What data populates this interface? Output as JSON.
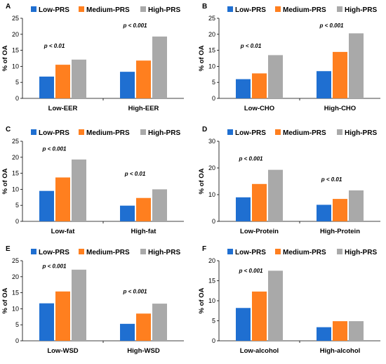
{
  "legend": [
    "Low-PRS",
    "Medium-PRS",
    "High-PRS"
  ],
  "colors": [
    "#1F6FD1",
    "#FF7F1F",
    "#A9A9A9"
  ],
  "chart_data": [
    {
      "type": "bar",
      "panel": "A",
      "title": "",
      "xlabel": "",
      "ylabel": "% of OA",
      "ylim": [
        0,
        25
      ],
      "yticks": [
        0,
        5,
        10,
        15,
        20,
        25
      ],
      "categories": [
        "Low-EER",
        "High-EER"
      ],
      "series": [
        {
          "name": "Low-PRS",
          "values": [
            6.8,
            8.3
          ]
        },
        {
          "name": "Medium-PRS",
          "values": [
            10.5,
            11.8
          ]
        },
        {
          "name": "High-PRS",
          "values": [
            12.1,
            19.3
          ]
        }
      ],
      "annotations": [
        {
          "text": "p < 0.01",
          "category": 0,
          "value": 15.8
        },
        {
          "text": "p < 0.001",
          "category": 1,
          "value": 22.2
        }
      ],
      "legend_position": "top"
    },
    {
      "type": "bar",
      "panel": "B",
      "title": "",
      "xlabel": "",
      "ylabel": "% of OA",
      "ylim": [
        0,
        25
      ],
      "yticks": [
        0,
        5,
        10,
        15,
        20,
        25
      ],
      "categories": [
        "Low-CHO",
        "High-CHO"
      ],
      "series": [
        {
          "name": "Low-PRS",
          "values": [
            6.0,
            8.5
          ]
        },
        {
          "name": "Medium-PRS",
          "values": [
            7.8,
            14.5
          ]
        },
        {
          "name": "High-PRS",
          "values": [
            13.5,
            20.3
          ]
        }
      ],
      "annotations": [
        {
          "text": "p < 0.01",
          "category": 0,
          "value": 15.8
        },
        {
          "text": "p < 0.001",
          "category": 1,
          "value": 22.2
        }
      ],
      "legend_position": "top"
    },
    {
      "type": "bar",
      "panel": "C",
      "title": "",
      "xlabel": "",
      "ylabel": "% of OA",
      "ylim": [
        0,
        25
      ],
      "yticks": [
        0,
        5,
        10,
        15,
        20,
        25
      ],
      "categories": [
        "Low-fat",
        "High-fat"
      ],
      "series": [
        {
          "name": "Low-PRS",
          "values": [
            9.5,
            4.9
          ]
        },
        {
          "name": "Medium-PRS",
          "values": [
            13.7,
            7.3
          ]
        },
        {
          "name": "High-PRS",
          "values": [
            19.3,
            10.0
          ]
        }
      ],
      "annotations": [
        {
          "text": "p < 0.001",
          "category": 0,
          "value": 22.0
        },
        {
          "text": "p < 0.01",
          "category": 1,
          "value": 14.3
        }
      ],
      "legend_position": "top"
    },
    {
      "type": "bar",
      "panel": "D",
      "title": "",
      "xlabel": "",
      "ylabel": "% of OA",
      "ylim": [
        0,
        30
      ],
      "yticks": [
        0,
        10,
        20,
        30
      ],
      "categories": [
        "Low-Protein",
        "High-Protein"
      ],
      "series": [
        {
          "name": "Low-PRS",
          "values": [
            9.0,
            6.2
          ]
        },
        {
          "name": "Medium-PRS",
          "values": [
            14.0,
            8.4
          ]
        },
        {
          "name": "High-PRS",
          "values": [
            19.3,
            11.6
          ]
        }
      ],
      "annotations": [
        {
          "text": "p < 0.001",
          "category": 0,
          "value": 22.8
        },
        {
          "text": "p < 0.01",
          "category": 1,
          "value": 15.0
        }
      ],
      "legend_position": "top"
    },
    {
      "type": "bar",
      "panel": "E",
      "title": "",
      "xlabel": "",
      "ylabel": "% of OA",
      "ylim": [
        0,
        25
      ],
      "yticks": [
        0,
        5,
        10,
        15,
        20,
        25
      ],
      "categories": [
        "Low-WSD",
        "High-WSD"
      ],
      "series": [
        {
          "name": "Low-PRS",
          "values": [
            11.7,
            5.3
          ]
        },
        {
          "name": "Medium-PRS",
          "values": [
            15.4,
            8.5
          ]
        },
        {
          "name": "High-PRS",
          "values": [
            22.2,
            11.6
          ]
        }
      ],
      "annotations": [
        {
          "text": "p < 0.001",
          "category": 0,
          "value": 22.7
        },
        {
          "text": "p < 0.001",
          "category": 1,
          "value": 14.8
        }
      ],
      "legend_position": "top"
    },
    {
      "type": "bar",
      "panel": "F",
      "title": "",
      "xlabel": "",
      "ylabel": "% of OA",
      "ylim": [
        0,
        20
      ],
      "yticks": [
        0,
        5,
        10,
        15,
        20
      ],
      "categories": [
        "Low-alcohol",
        "High-alcohol"
      ],
      "series": [
        {
          "name": "Low-PRS",
          "values": [
            8.2,
            3.4
          ]
        },
        {
          "name": "Medium-PRS",
          "values": [
            12.3,
            4.9
          ]
        },
        {
          "name": "High-PRS",
          "values": [
            17.5,
            4.9
          ]
        }
      ],
      "annotations": [
        {
          "text": "p < 0.001",
          "category": 0,
          "value": 17.0
        }
      ],
      "legend_position": "top"
    }
  ]
}
